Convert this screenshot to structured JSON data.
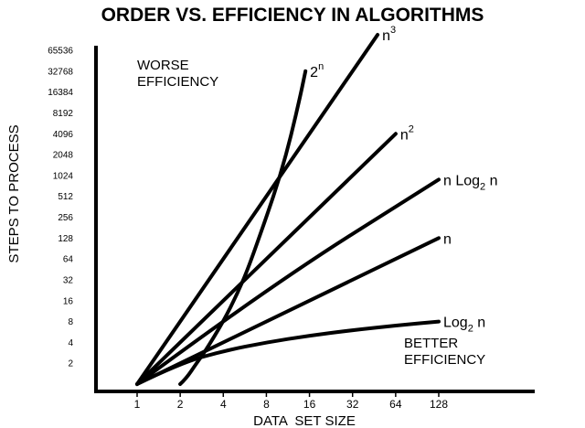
{
  "chart_data": {
    "type": "line",
    "title": "ORDER VS. EFFICIENCY IN ALGORITHMS",
    "xlabel": "DATA  SET SIZE",
    "ylabel": "STEPS  TO PROCESS",
    "x_ticks": [
      "1",
      "2",
      "4",
      "8",
      "16",
      "32",
      "64",
      "128"
    ],
    "y_ticks": [
      "2",
      "4",
      "8",
      "16",
      "32",
      "64",
      "128",
      "256",
      "512",
      "1024",
      "2048",
      "4096",
      "8192",
      "16384",
      "32768",
      "65536"
    ],
    "x_scale": "log2",
    "y_scale": "log2",
    "annotations": {
      "worse": [
        "WORSE",
        "EFFICIENCY"
      ],
      "better": [
        "BETTER",
        "EFFICIENCY"
      ]
    },
    "series": [
      {
        "name": "2^n",
        "label_base": "2",
        "label_sup": "n",
        "label_tail": "",
        "label_sub": "",
        "label_end": "",
        "x": [
          2,
          2.2,
          2.6,
          3,
          4,
          5,
          6,
          8,
          10,
          12,
          14,
          15
        ],
        "y": [
          1,
          1.2,
          2,
          3,
          8,
          20,
          48,
          256,
          1024,
          4096,
          16384,
          32768
        ]
      },
      {
        "name": "n^3",
        "label_base": "n",
        "label_sup": "3",
        "label_tail": "",
        "label_sub": "",
        "label_end": "",
        "x": [
          1,
          64
        ],
        "y": [
          1,
          262144
        ]
      },
      {
        "name": "n^2",
        "label_base": "n",
        "label_sup": "2",
        "label_tail": "",
        "label_sub": "",
        "label_end": "",
        "x": [
          1,
          64
        ],
        "y": [
          1,
          4096
        ]
      },
      {
        "name": "n Log2 n",
        "label_base": "n Log",
        "label_sup": "",
        "label_tail": "",
        "label_sub": "2",
        "label_end": " n",
        "x": [
          1,
          8,
          128
        ],
        "y": [
          1,
          24,
          896
        ]
      },
      {
        "name": "n",
        "label_base": "n",
        "label_sup": "",
        "label_tail": "",
        "label_sub": "",
        "label_end": "",
        "x": [
          1,
          128
        ],
        "y": [
          1,
          128
        ]
      },
      {
        "name": "Log2 n",
        "label_base": "Log",
        "label_sup": "",
        "label_tail": "",
        "label_sub": "2",
        "label_end": " n",
        "x": [
          1,
          2,
          4,
          8,
          16,
          32,
          64,
          128
        ],
        "y": [
          1,
          2,
          3,
          4,
          5,
          6,
          7,
          8
        ]
      }
    ]
  }
}
